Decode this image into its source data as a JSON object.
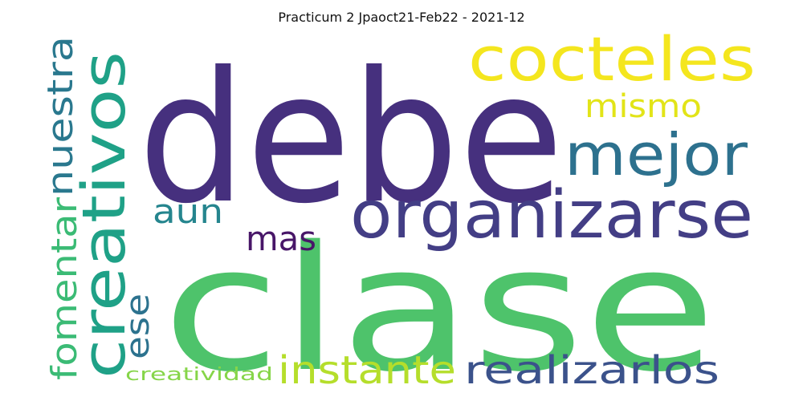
{
  "title": "Practicum 2 Jpaoct21-Feb22 - 2021-12",
  "words": [
    {
      "text": "debe",
      "color": "#46307e"
    },
    {
      "text": "clase",
      "color": "#4ec36b"
    },
    {
      "text": "creativos",
      "color": "#1fa187"
    },
    {
      "text": "organizarse",
      "color": "#433e85"
    },
    {
      "text": "cocteles",
      "color": "#f4e61e"
    },
    {
      "text": "mejor",
      "color": "#2d718e"
    },
    {
      "text": "nuestra",
      "color": "#2a788e"
    },
    {
      "text": "fomentar",
      "color": "#3bbb75"
    },
    {
      "text": "instante",
      "color": "#b5de2b"
    },
    {
      "text": "realizarlos",
      "color": "#3b528b"
    },
    {
      "text": "mismo",
      "color": "#e2e418"
    },
    {
      "text": "aun",
      "color": "#25858e"
    },
    {
      "text": "mas",
      "color": "#481668"
    },
    {
      "text": "ese",
      "color": "#2c728e"
    },
    {
      "text": "creatividad",
      "color": "#86d549"
    }
  ]
}
